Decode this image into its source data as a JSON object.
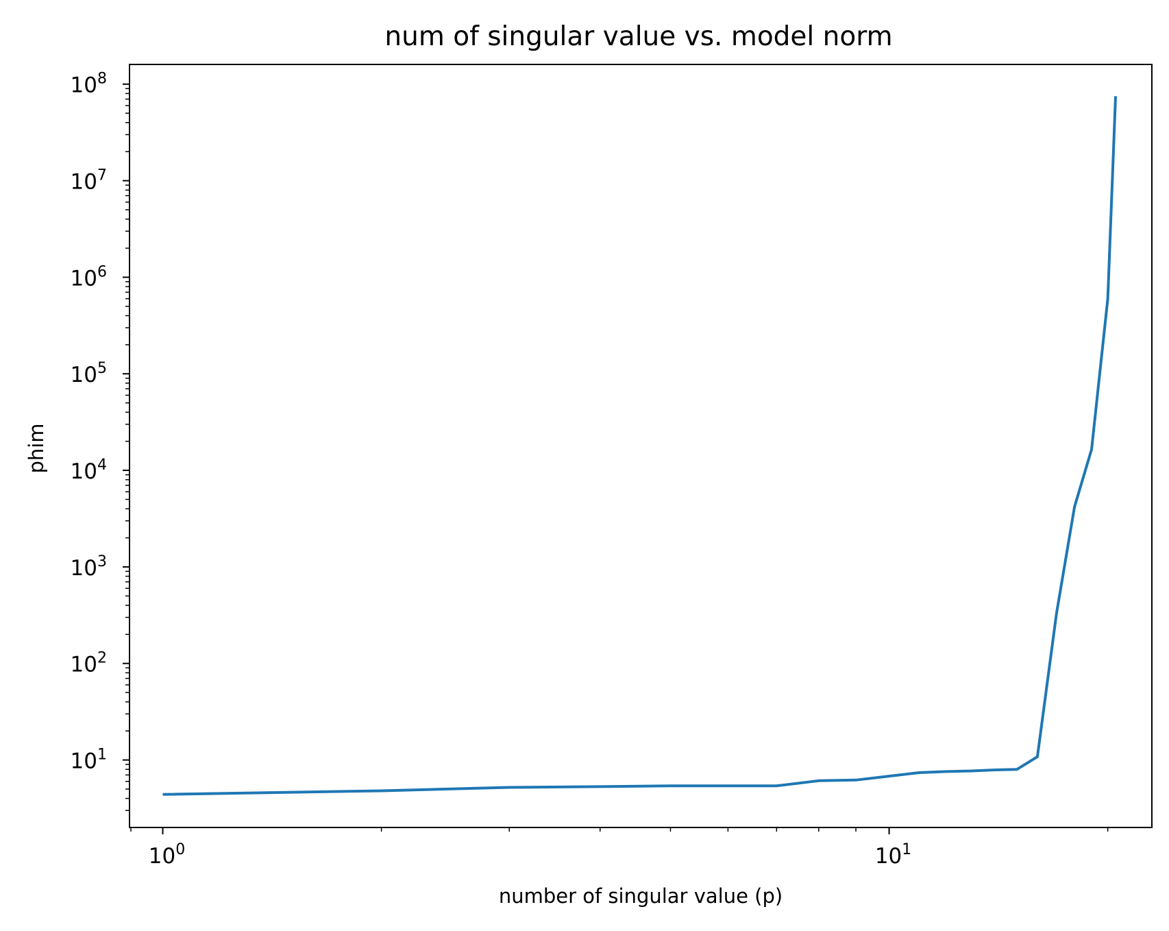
{
  "colors": {
    "series": "#1f77b4",
    "axes": "#000000",
    "background": "#ffffff"
  },
  "chart_data": {
    "type": "line",
    "title": "num of singular value vs. model norm",
    "xlabel": "number of singular value (p)",
    "ylabel": "phim",
    "xscale": "log",
    "yscale": "log",
    "xlim": [
      0.9,
      23
    ],
    "ylim": [
      2,
      160000000
    ],
    "grid": false,
    "legend": "none",
    "x_ticks": [
      {
        "base": "10",
        "exp": "0",
        "value": 1
      },
      {
        "base": "10",
        "exp": "1",
        "value": 10
      }
    ],
    "y_ticks": [
      {
        "base": "10",
        "exp": "1",
        "value": 10
      },
      {
        "base": "10",
        "exp": "2",
        "value": 100
      },
      {
        "base": "10",
        "exp": "3",
        "value": 1000
      },
      {
        "base": "10",
        "exp": "4",
        "value": 10000
      },
      {
        "base": "10",
        "exp": "5",
        "value": 100000
      },
      {
        "base": "10",
        "exp": "6",
        "value": 1000000
      },
      {
        "base": "10",
        "exp": "7",
        "value": 10000000
      },
      {
        "base": "10",
        "exp": "8",
        "value": 100000000
      }
    ],
    "series": [
      {
        "x": [
          1,
          2,
          3,
          4,
          5,
          6,
          7,
          8,
          9,
          10,
          11,
          12,
          13,
          14,
          15,
          16,
          17,
          18,
          19,
          20
        ],
        "y": [
          4.4,
          4.8,
          5.2,
          5.3,
          5.4,
          5.4,
          5.4,
          6.1,
          6.2,
          6.8,
          7.4,
          7.6,
          7.7,
          7.9,
          8.0,
          10.8,
          330,
          4200,
          16500,
          600000
        ],
        "y_tail": 75000000
      }
    ]
  }
}
